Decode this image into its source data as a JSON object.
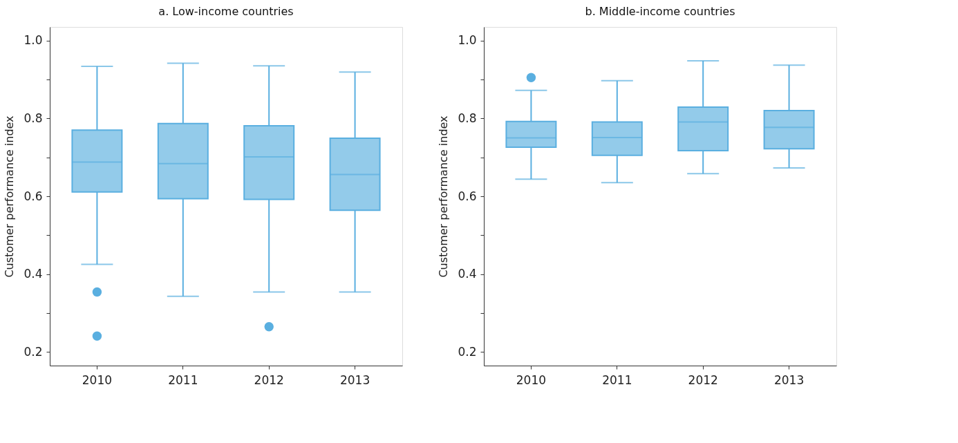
{
  "chart_data": [
    {
      "type": "box",
      "title": "a. Low-income countries",
      "ylabel": "Customer performance index",
      "categories": [
        "2010",
        "2011",
        "2012",
        "2013"
      ],
      "ylim": [
        0.165,
        1.035
      ],
      "yticks": [
        0.2,
        {
          "value": 0.3,
          "label": null
        },
        0.4,
        {
          "value": 0.5,
          "label": null
        },
        0.6,
        {
          "value": 0.7,
          "label": null
        },
        0.8,
        {
          "value": 0.9,
          "label": null
        },
        {
          "value": 1.0,
          "label": "1.0"
        }
      ],
      "grid": false,
      "series": [
        {
          "color": "#5aafe0",
          "boxes": [
            {
              "low": 0.425,
              "q1": 0.611,
              "median": 0.688,
              "q3": 0.77,
              "high": 0.934,
              "outliers": [
                0.354,
                0.241
              ]
            },
            {
              "low": 0.343,
              "q1": 0.594,
              "median": 0.684,
              "q3": 0.787,
              "high": 0.942
            },
            {
              "low": 0.354,
              "q1": 0.592,
              "median": 0.701,
              "q3": 0.781,
              "high": 0.935,
              "outliers": [
                0.265
              ]
            },
            {
              "low": 0.354,
              "q1": 0.564,
              "median": 0.656,
              "q3": 0.749,
              "high": 0.919
            }
          ]
        }
      ]
    },
    {
      "type": "box",
      "title": "b. Middle-income countries",
      "ylabel": "Customer performance index",
      "categories": [
        "2010",
        "2011",
        "2012",
        "2013"
      ],
      "ylim": [
        0.165,
        1.035
      ],
      "yticks": [
        0.2,
        {
          "value": 0.3,
          "label": null
        },
        0.4,
        {
          "value": 0.5,
          "label": null
        },
        0.6,
        {
          "value": 0.7,
          "label": null
        },
        0.8,
        {
          "value": 0.9,
          "label": null
        },
        {
          "value": 1.0,
          "label": "1.0"
        }
      ],
      "grid": false,
      "series": [
        {
          "color": "#5aafe0",
          "boxes": [
            {
              "low": 0.644,
              "q1": 0.726,
              "median": 0.75,
              "q3": 0.792,
              "high": 0.872,
              "outliers": [
                0.905
              ]
            },
            {
              "low": 0.635,
              "q1": 0.705,
              "median": 0.751,
              "q3": 0.791,
              "high": 0.897
            },
            {
              "low": 0.658,
              "q1": 0.717,
              "median": 0.791,
              "q3": 0.829,
              "high": 0.948
            },
            {
              "low": 0.673,
              "q1": 0.722,
              "median": 0.777,
              "q3": 0.82,
              "high": 0.937
            }
          ]
        }
      ]
    }
  ]
}
